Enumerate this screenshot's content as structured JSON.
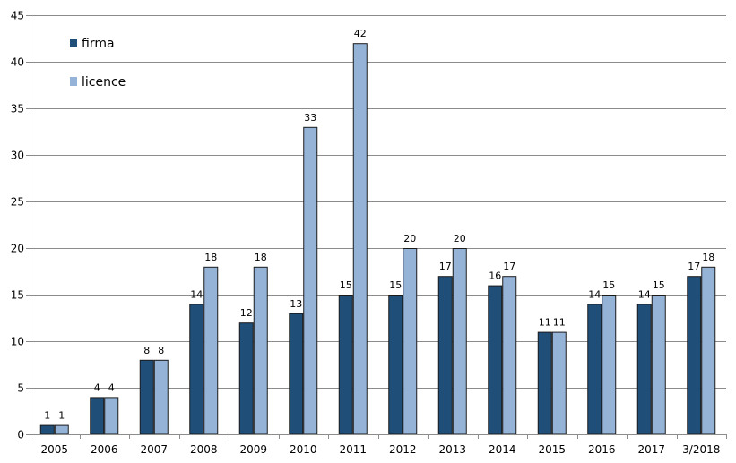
{
  "chart_data": {
    "type": "bar",
    "categories": [
      "2005",
      "2006",
      "2007",
      "2008",
      "2009",
      "2010",
      "2011",
      "2012",
      "2013",
      "2014",
      "2015",
      "2016",
      "2017",
      "3/2018"
    ],
    "series": [
      {
        "name": "firma",
        "color": "#1f4e79",
        "values": [
          1,
          4,
          8,
          14,
          12,
          13,
          15,
          15,
          17,
          16,
          11,
          14,
          14,
          17
        ]
      },
      {
        "name": "licence",
        "color": "#95b3d7",
        "values": [
          1,
          4,
          8,
          18,
          18,
          33,
          42,
          20,
          20,
          17,
          11,
          15,
          15,
          18
        ]
      }
    ],
    "ylim": [
      0,
      45
    ],
    "yticks": [
      0,
      5,
      10,
      15,
      20,
      25,
      30,
      35,
      40,
      45
    ],
    "grid": true,
    "legend_position": "top-left",
    "title": "",
    "xlabel": "",
    "ylabel": ""
  }
}
